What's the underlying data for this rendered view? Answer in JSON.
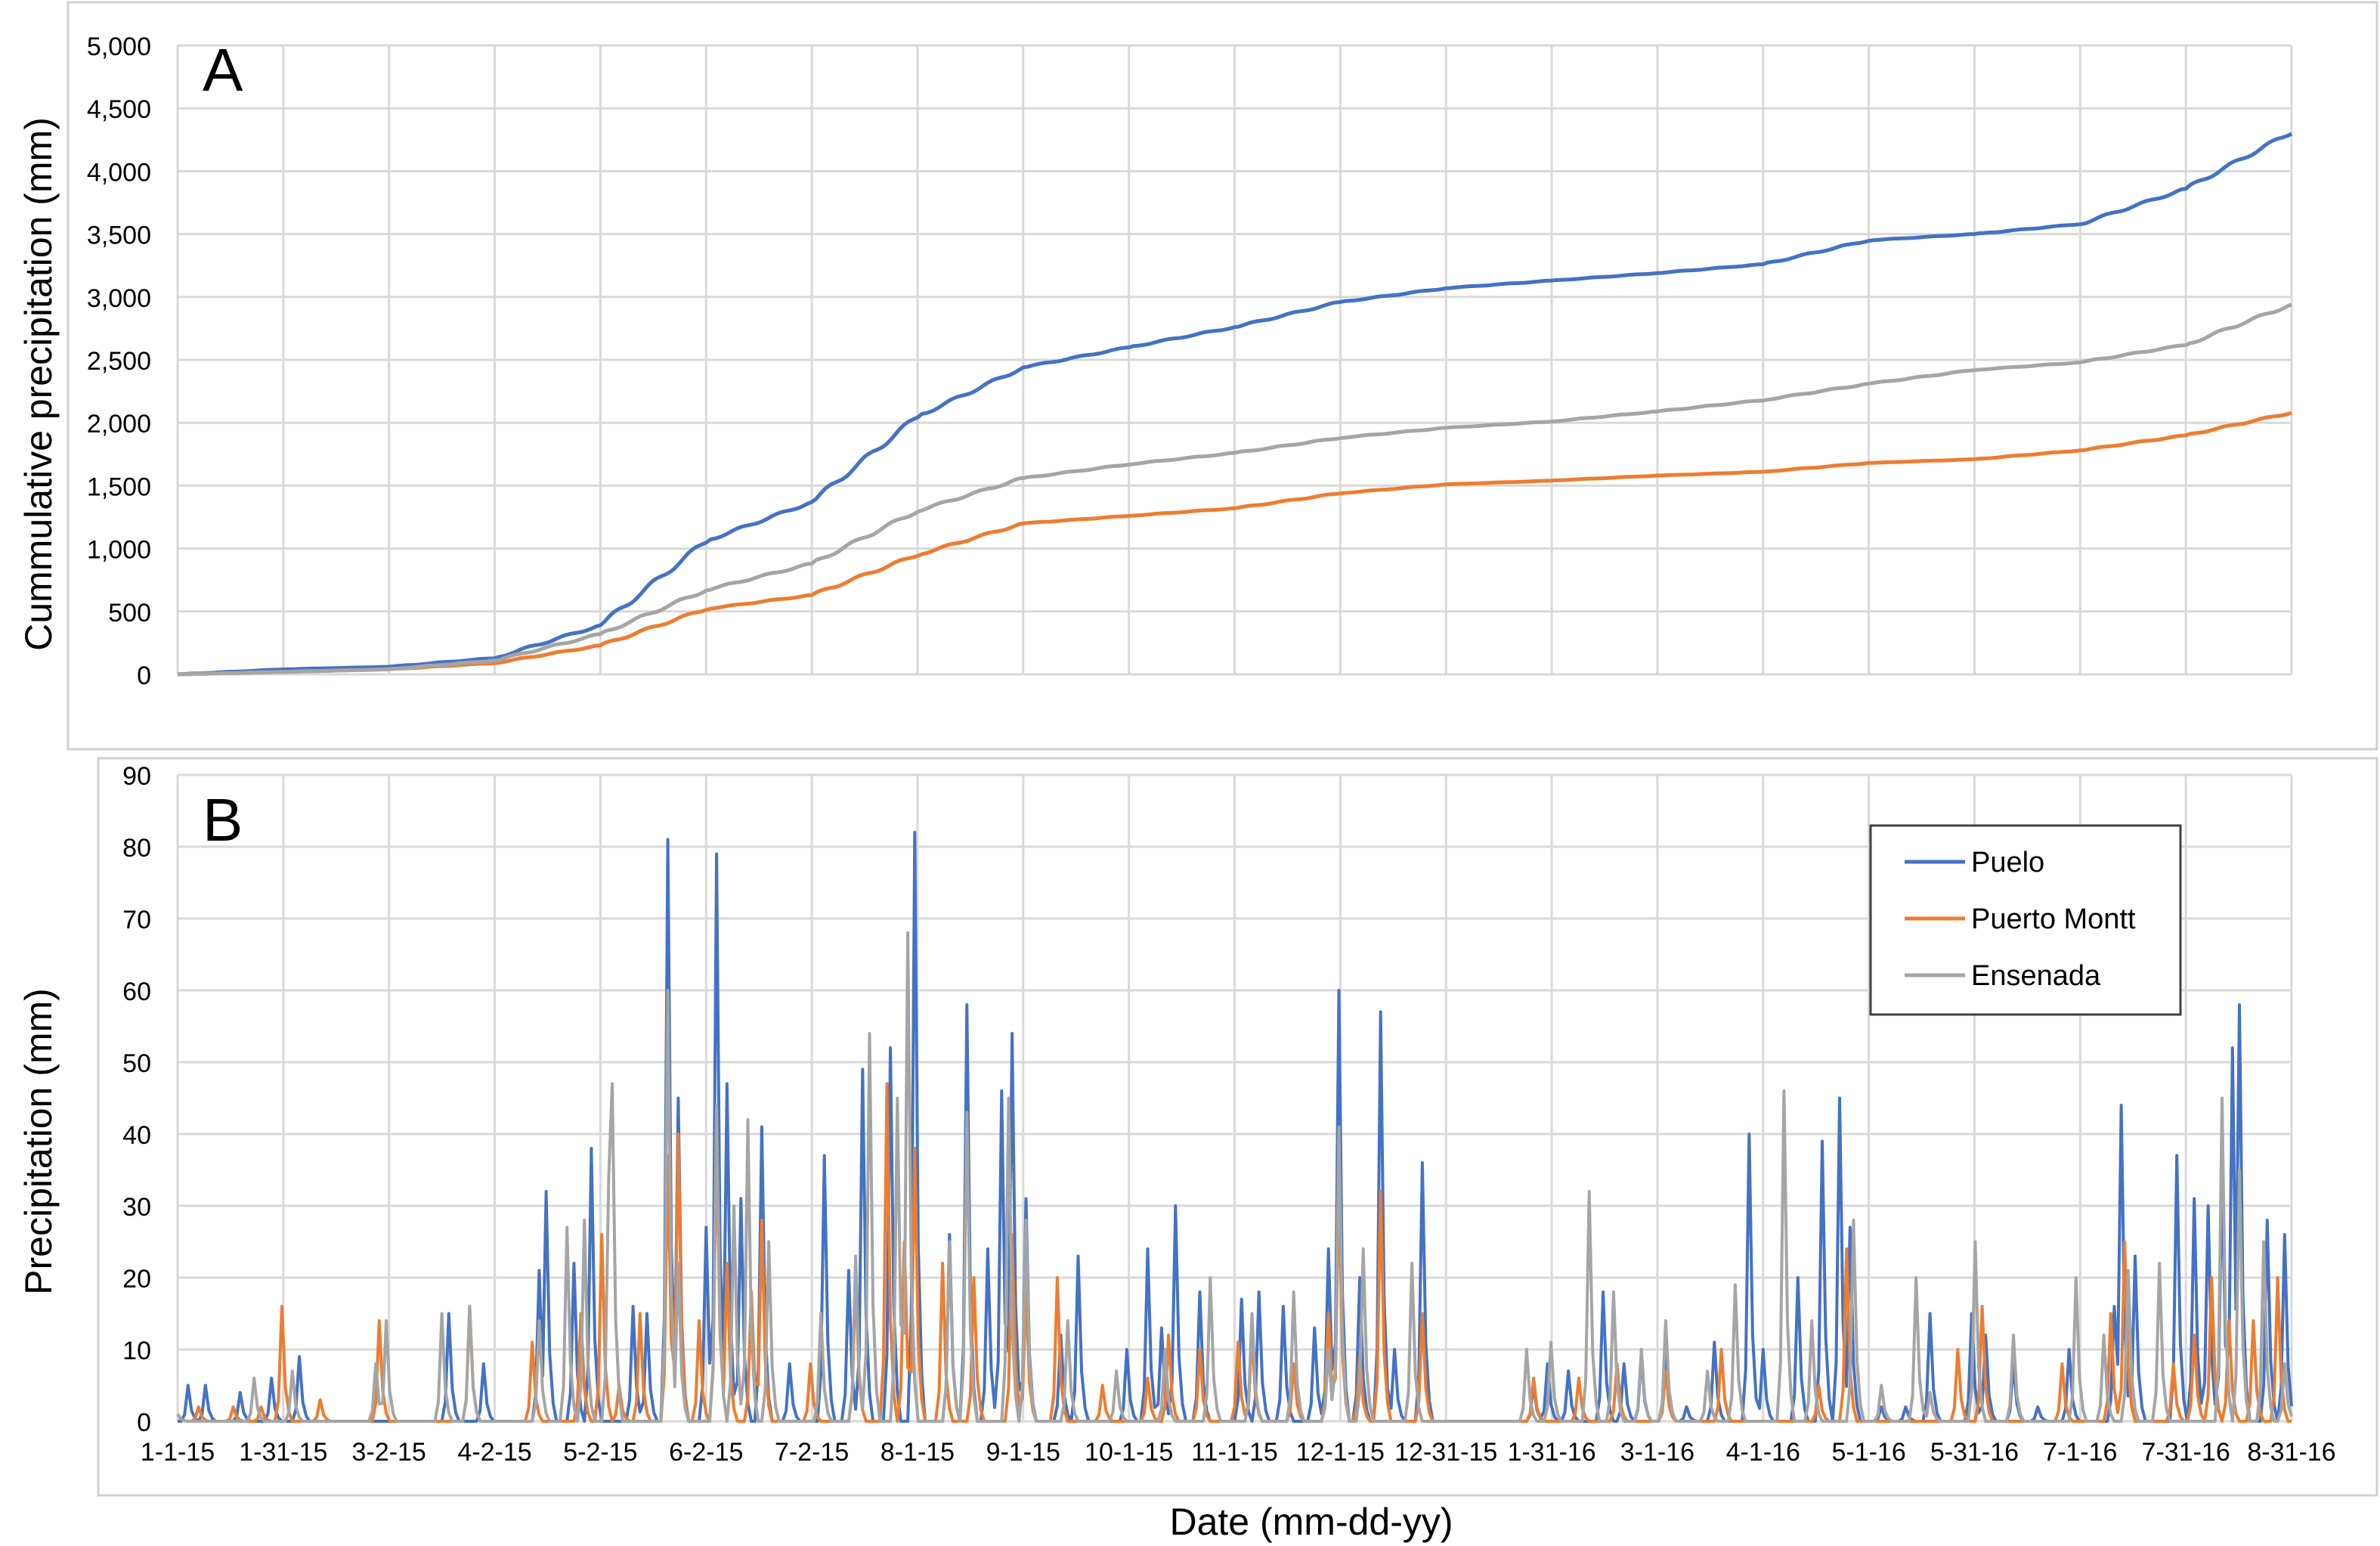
{
  "colors": {
    "puelo": "#4472C4",
    "puerto_montt": "#ED7D31",
    "ensenada": "#A5A5A5",
    "grid": "#D9D9D9",
    "frame": "#D0D0D0",
    "text": "#000000"
  },
  "x_tick_labels": [
    "1-1-15",
    "1-31-15",
    "3-2-15",
    "4-2-15",
    "5-2-15",
    "6-2-15",
    "7-2-15",
    "8-1-15",
    "9-1-15",
    "10-1-15",
    "11-1-15",
    "12-1-15",
    "12-31-15",
    "1-31-16",
    "3-1-16",
    "4-1-16",
    "5-1-16",
    "5-31-16",
    "7-1-16",
    "7-31-16",
    "8-31-16"
  ],
  "x_axis_title": "Date (mm-dd-yy)",
  "chart_data": [
    {
      "panel_label": "A",
      "type": "line",
      "ylabel": "Cummulative precipitation (mm)",
      "ylim": [
        0,
        5000
      ],
      "yticks": [
        "0",
        "500",
        "1,000",
        "1,500",
        "2,000",
        "2,500",
        "3,000",
        "3,500",
        "4,000",
        "4,500",
        "5,000"
      ],
      "x_dates": [
        "1-1-15",
        "1-31-15",
        "3-2-15",
        "4-2-15",
        "5-2-15",
        "6-2-15",
        "7-2-15",
        "8-1-15",
        "9-1-15",
        "10-1-15",
        "11-1-15",
        "12-1-15",
        "12-31-15",
        "1-31-16",
        "3-1-16",
        "4-1-16",
        "5-1-16",
        "5-31-16",
        "7-1-16",
        "7-31-16",
        "8-31-16"
      ],
      "grid": true,
      "series": [
        {
          "name": "Puelo",
          "values": [
            0,
            40,
            60,
            130,
            390,
            1060,
            1370,
            2050,
            2440,
            2600,
            2760,
            2960,
            3070,
            3130,
            3190,
            3260,
            3450,
            3500,
            3580,
            3860,
            4310
          ]
        },
        {
          "name": "Puerto Montt",
          "values": [
            0,
            20,
            40,
            90,
            230,
            520,
            630,
            950,
            1200,
            1260,
            1320,
            1440,
            1510,
            1540,
            1580,
            1610,
            1680,
            1710,
            1780,
            1900,
            2080
          ]
        },
        {
          "name": "Ensenada",
          "values": [
            0,
            20,
            40,
            110,
            320,
            670,
            880,
            1300,
            1560,
            1670,
            1760,
            1880,
            1960,
            2010,
            2090,
            2180,
            2310,
            2420,
            2480,
            2620,
            2940
          ]
        }
      ]
    },
    {
      "panel_label": "B",
      "type": "line",
      "ylabel": "Precipitation (mm)",
      "ylim": [
        0,
        90
      ],
      "yticks": [
        "0",
        "10",
        "20",
        "30",
        "40",
        "50",
        "60",
        "70",
        "80",
        "90"
      ],
      "grid": true,
      "legend_position": "top-right",
      "peaks": {
        "Puelo": [
          [
            3,
            5
          ],
          [
            8,
            5
          ],
          [
            18,
            4
          ],
          [
            27,
            6
          ],
          [
            35,
            9
          ],
          [
            78,
            15
          ],
          [
            88,
            8
          ],
          [
            104,
            21
          ],
          [
            106,
            32
          ],
          [
            114,
            22
          ],
          [
            119,
            38
          ],
          [
            131,
            16
          ],
          [
            135,
            15
          ],
          [
            141,
            81
          ],
          [
            144,
            45
          ],
          [
            152,
            27
          ],
          [
            155,
            79
          ],
          [
            158,
            47
          ],
          [
            162,
            31
          ],
          [
            168,
            41
          ],
          [
            176,
            8
          ],
          [
            186,
            37
          ],
          [
            193,
            21
          ],
          [
            197,
            49
          ],
          [
            205,
            52
          ],
          [
            212,
            82
          ],
          [
            222,
            26
          ],
          [
            227,
            58
          ],
          [
            233,
            24
          ],
          [
            237,
            46
          ],
          [
            240,
            54
          ],
          [
            244,
            31
          ],
          [
            254,
            12
          ],
          [
            259,
            23
          ],
          [
            273,
            10
          ],
          [
            279,
            24
          ],
          [
            283,
            13
          ],
          [
            287,
            30
          ],
          [
            294,
            18
          ],
          [
            306,
            17
          ],
          [
            311,
            18
          ],
          [
            318,
            16
          ],
          [
            327,
            13
          ],
          [
            331,
            24
          ],
          [
            334,
            60
          ],
          [
            340,
            20
          ],
          [
            346,
            57
          ],
          [
            350,
            10
          ],
          [
            358,
            36
          ],
          [
            390,
            5
          ],
          [
            394,
            8
          ],
          [
            400,
            7
          ],
          [
            410,
            18
          ],
          [
            416,
            8
          ],
          [
            421,
            9
          ],
          [
            428,
            11
          ],
          [
            434,
            2
          ],
          [
            442,
            11
          ],
          [
            452,
            40
          ],
          [
            456,
            10
          ],
          [
            466,
            20
          ],
          [
            473,
            39
          ],
          [
            478,
            45
          ],
          [
            481,
            27
          ],
          [
            490,
            2
          ],
          [
            497,
            2
          ],
          [
            504,
            15
          ],
          [
            516,
            15
          ],
          [
            520,
            12
          ],
          [
            528,
            8
          ],
          [
            535,
            2
          ],
          [
            544,
            10
          ],
          [
            557,
            16
          ],
          [
            559,
            44
          ],
          [
            563,
            23
          ],
          [
            575,
            15
          ],
          [
            575,
            37
          ],
          [
            580,
            31
          ],
          [
            584,
            30
          ],
          [
            588,
            35
          ],
          [
            591,
            52
          ],
          [
            593,
            58
          ],
          [
            601,
            28
          ],
          [
            606,
            26
          ]
        ],
        "Puerto Montt": [
          [
            0,
            1
          ],
          [
            6,
            2
          ],
          [
            16,
            2
          ],
          [
            24,
            2
          ],
          [
            30,
            16
          ],
          [
            41,
            3
          ],
          [
            58,
            14
          ],
          [
            84,
            16
          ],
          [
            102,
            11
          ],
          [
            116,
            15
          ],
          [
            122,
            26
          ],
          [
            127,
            5
          ],
          [
            133,
            15
          ],
          [
            141,
            37
          ],
          [
            144,
            40
          ],
          [
            150,
            14
          ],
          [
            155,
            40
          ],
          [
            158,
            22
          ],
          [
            165,
            18
          ],
          [
            168,
            28
          ],
          [
            182,
            8
          ],
          [
            195,
            20
          ],
          [
            204,
            47
          ],
          [
            209,
            25
          ],
          [
            212,
            38
          ],
          [
            220,
            22
          ],
          [
            229,
            20
          ],
          [
            240,
            26
          ],
          [
            244,
            18
          ],
          [
            253,
            20
          ],
          [
            266,
            5
          ],
          [
            279,
            6
          ],
          [
            285,
            12
          ],
          [
            294,
            10
          ],
          [
            305,
            11
          ],
          [
            309,
            12
          ],
          [
            321,
            8
          ],
          [
            331,
            15
          ],
          [
            334,
            33
          ],
          [
            340,
            9
          ],
          [
            346,
            32
          ],
          [
            358,
            15
          ],
          [
            390,
            6
          ],
          [
            403,
            6
          ],
          [
            414,
            8
          ],
          [
            428,
            7
          ],
          [
            444,
            10
          ],
          [
            472,
            5
          ],
          [
            480,
            24
          ],
          [
            512,
            10
          ],
          [
            519,
            16
          ],
          [
            542,
            8
          ],
          [
            556,
            15
          ],
          [
            560,
            25
          ],
          [
            574,
            8
          ],
          [
            580,
            12
          ],
          [
            585,
            20
          ],
          [
            590,
            14
          ],
          [
            597,
            14
          ],
          [
            604,
            20
          ]
        ],
        "Ensenada": [
          [
            0,
            1
          ],
          [
            22,
            6
          ],
          [
            33,
            7
          ],
          [
            57,
            8
          ],
          [
            60,
            14
          ],
          [
            76,
            15
          ],
          [
            84,
            16
          ],
          [
            104,
            14
          ],
          [
            112,
            27
          ],
          [
            117,
            28
          ],
          [
            124,
            34
          ],
          [
            125,
            47
          ],
          [
            141,
            60
          ],
          [
            144,
            22
          ],
          [
            155,
            44
          ],
          [
            160,
            30
          ],
          [
            164,
            42
          ],
          [
            170,
            25
          ],
          [
            185,
            15
          ],
          [
            195,
            23
          ],
          [
            199,
            54
          ],
          [
            207,
            45
          ],
          [
            210,
            68
          ],
          [
            222,
            25
          ],
          [
            227,
            43
          ],
          [
            239,
            45
          ],
          [
            244,
            28
          ],
          [
            256,
            14
          ],
          [
            270,
            7
          ],
          [
            284,
            10
          ],
          [
            297,
            20
          ],
          [
            309,
            15
          ],
          [
            321,
            18
          ],
          [
            331,
            10
          ],
          [
            334,
            41
          ],
          [
            341,
            24
          ],
          [
            355,
            22
          ],
          [
            388,
            10
          ],
          [
            395,
            11
          ],
          [
            406,
            32
          ],
          [
            413,
            18
          ],
          [
            421,
            10
          ],
          [
            428,
            14
          ],
          [
            440,
            7
          ],
          [
            448,
            19
          ],
          [
            462,
            46
          ],
          [
            470,
            14
          ],
          [
            482,
            28
          ],
          [
            490,
            5
          ],
          [
            500,
            20
          ],
          [
            504,
            4
          ],
          [
            517,
            25
          ],
          [
            528,
            12
          ],
          [
            546,
            20
          ],
          [
            554,
            12
          ],
          [
            561,
            21
          ],
          [
            570,
            22
          ],
          [
            588,
            45
          ],
          [
            593,
            35
          ],
          [
            600,
            25
          ],
          [
            606,
            8
          ]
        ]
      },
      "series": [
        {
          "name": "Puelo"
        },
        {
          "name": "Puerto Montt"
        },
        {
          "name": "Ensenada"
        }
      ]
    }
  ]
}
